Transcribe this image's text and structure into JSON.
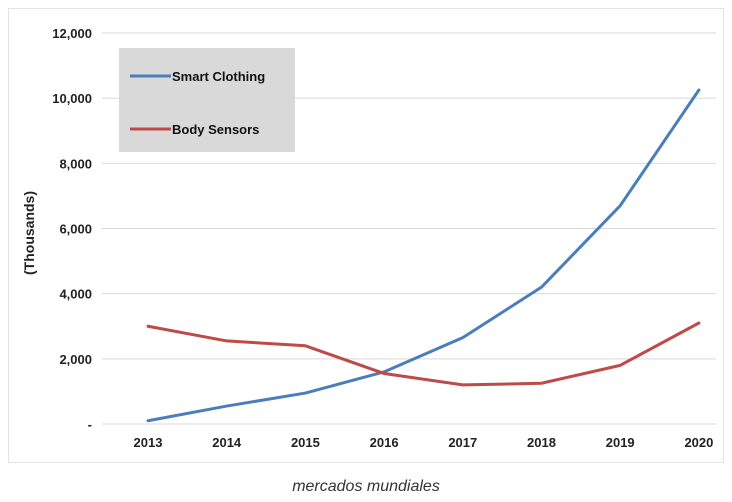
{
  "caption": "mercados mundiales",
  "chart_data": {
    "type": "line",
    "x": [
      "2013",
      "2014",
      "2015",
      "2016",
      "2017",
      "2018",
      "2019",
      "2020"
    ],
    "ylabel": "(Thousands)",
    "ylim": [
      0,
      12000
    ],
    "yticks": [
      {
        "value": 0,
        "label": "-"
      },
      {
        "value": 2000,
        "label": "2,000"
      },
      {
        "value": 4000,
        "label": "4,000"
      },
      {
        "value": 6000,
        "label": "6,000"
      },
      {
        "value": 8000,
        "label": "8,000"
      },
      {
        "value": 10000,
        "label": "10,000"
      },
      {
        "value": 12000,
        "label": "12,000"
      }
    ],
    "grid": true,
    "legend_position": "top-left",
    "series": [
      {
        "name": "Smart Clothing",
        "color": "#4a7ebb",
        "values": [
          100,
          550,
          950,
          1600,
          2650,
          4200,
          6700,
          10250
        ]
      },
      {
        "name": "Body Sensors",
        "color": "#be4b48",
        "values": [
          3000,
          2550,
          2400,
          1550,
          1200,
          1250,
          1800,
          3100
        ]
      }
    ]
  }
}
